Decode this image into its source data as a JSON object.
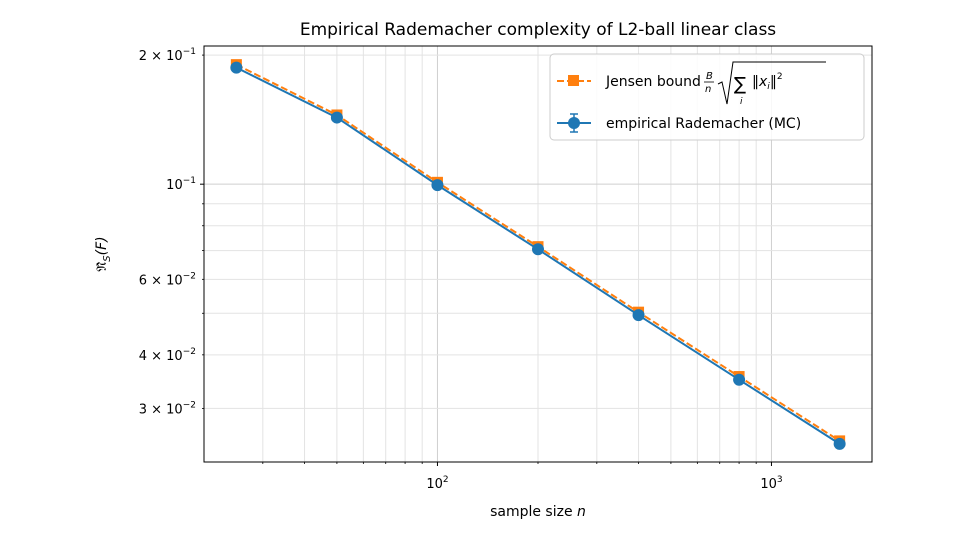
{
  "chart_data": {
    "type": "line",
    "title": "Empirical Rademacher complexity of L2-ball linear class",
    "xlabel_prefix": "sample size ",
    "xlabel_var": "n",
    "ylabel_main": "𝔑̂",
    "ylabel_sub": "S",
    "ylabel_tail": "(F)",
    "xscale": "log",
    "yscale": "log",
    "xlim": [
      20,
      2000
    ],
    "ylim": [
      0.0225,
      0.21
    ],
    "grid": true,
    "legend_position": "upper-right",
    "x_tick_labels": [
      {
        "value": 100,
        "base": "10",
        "exp": "2"
      },
      {
        "value": 1000,
        "base": "10",
        "exp": "3"
      }
    ],
    "y_tick_labels": [
      {
        "value": 0.2,
        "mant": "2 × 10",
        "exp": "−1"
      },
      {
        "value": 0.1,
        "mant": "10",
        "exp": "−1"
      },
      {
        "value": 0.06,
        "mant": "6 × 10",
        "exp": "−2"
      },
      {
        "value": 0.04,
        "mant": "4 × 10",
        "exp": "−2"
      },
      {
        "value": 0.03,
        "mant": "3 × 10",
        "exp": "−2"
      }
    ],
    "series": [
      {
        "name": "empirical Rademacher (MC)",
        "color": "#1f77b4",
        "style": "solid",
        "marker": "circle",
        "x": [
          25,
          50,
          100,
          200,
          400,
          800,
          1600
        ],
        "y": [
          0.187,
          0.143,
          0.0995,
          0.0705,
          0.0495,
          0.035,
          0.0248
        ]
      },
      {
        "name_prefix": "Jensen bound",
        "color": "#ff7f0e",
        "style": "dashed",
        "marker": "square",
        "x": [
          25,
          50,
          100,
          200,
          400,
          800,
          1600
        ],
        "y": [
          0.19,
          0.145,
          0.101,
          0.0715,
          0.0503,
          0.0356,
          0.0252
        ]
      }
    ]
  }
}
